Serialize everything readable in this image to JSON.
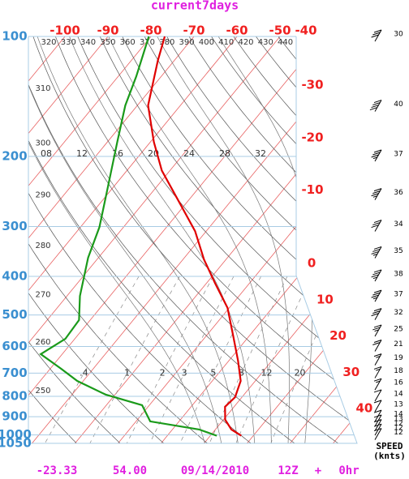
{
  "chart_data": {
    "type": "skew-t",
    "title": "current7days",
    "log_y": true,
    "ylim": [
      100,
      1050
    ],
    "yticks": [
      100,
      200,
      300,
      400,
      500,
      600,
      700,
      800,
      900,
      1000,
      1050
    ],
    "temperature_ticks_top": [
      -100,
      -90,
      -80,
      -70,
      -60,
      -50,
      -40
    ],
    "temperature_ticks_right": [
      -30,
      -20,
      -10,
      0,
      10,
      20,
      30,
      40
    ],
    "dry_adiabat_labels_top": [
      320,
      330,
      340,
      350,
      360,
      370,
      380,
      390,
      400,
      410,
      420,
      430,
      440
    ],
    "dry_adiabat_labels_left": [
      310,
      300,
      290,
      280,
      270,
      260,
      250
    ],
    "moist_adiabat_labels": [
      {
        "value": 8,
        "label": "08"
      },
      12,
      16,
      20,
      24,
      28,
      32
    ],
    "mixing_ratio_labels": [
      {
        "value": 0.4,
        "label": ".4"
      },
      1,
      2,
      3,
      5,
      8,
      12,
      20
    ],
    "isotherm_color": "#e86060",
    "isobar_color": "#a8cce4",
    "series": [
      {
        "color": "#e00000",
        "pressure": [
          100,
          115,
          149,
          184,
          217,
          255,
          308,
          363,
          417,
          480,
          566,
          651,
          732,
          804,
          850,
          916,
          969,
          1005
        ],
        "values": [
          -76.8,
          -73.8,
          -67.5,
          -59.2,
          -51.9,
          -43.0,
          -32.6,
          -25.1,
          -17.9,
          -10.4,
          -3.6,
          2.1,
          6.6,
          8.4,
          7.9,
          10.4,
          13.7,
          17.2
        ]
      },
      {
        "color": "#1a9a1a",
        "pressure": [
          100,
          126,
          149,
          184,
          232,
          301,
          359,
          448,
          515,
          574,
          627,
          682,
          732,
          792,
          842,
          925,
          969,
          1005
        ],
        "values": [
          -80.5,
          -75.8,
          -72.8,
          -67.7,
          -62.0,
          -55.6,
          -52.4,
          -47.0,
          -42.6,
          -42.2,
          -45.0,
          -37.5,
          -31.4,
          -22.2,
          -11.7,
          -6.7,
          6.2,
          11.5
        ]
      }
    ],
    "winds": {
      "label": "SPEED",
      "unit_label": "(knts)",
      "pressure": [
        100,
        150,
        200,
        250,
        300,
        350,
        400,
        450,
        500,
        550,
        600,
        650,
        700,
        750,
        800,
        850,
        900,
        925,
        950,
        975,
        1000
      ],
      "speeds": [
        30,
        40,
        37,
        36,
        34,
        35,
        38,
        37,
        32,
        25,
        21,
        19,
        18,
        16,
        14,
        13,
        14,
        13,
        12,
        12,
        12
      ]
    },
    "footer": [
      "-23.33",
      "54.00",
      "09/14/2010",
      "12Z",
      "+",
      "0hr"
    ]
  }
}
